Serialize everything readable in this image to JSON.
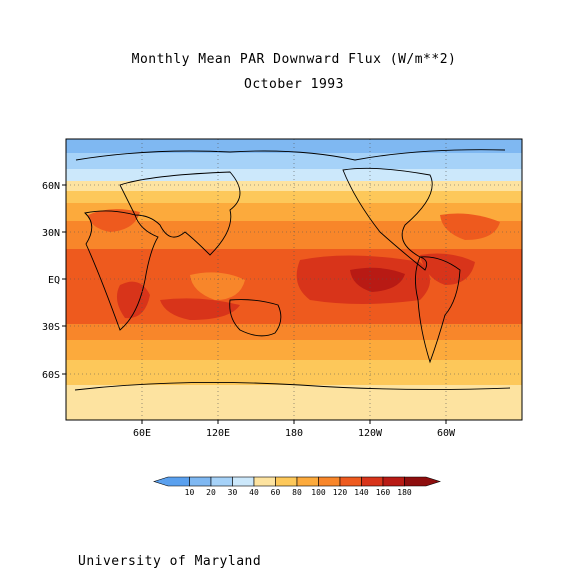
{
  "title": "Monthly Mean PAR Downward Flux (W/m**2)",
  "subtitle": "October 1993",
  "map": {
    "lat_labels": [
      "60N",
      "30N",
      "EQ",
      "30S",
      "60S"
    ],
    "lon_labels": [
      "60E",
      "120E",
      "180",
      "120W",
      "60W"
    ]
  },
  "colorbar": {
    "ticks": [
      "10",
      "20",
      "30",
      "40",
      "60",
      "80",
      "100",
      "120",
      "140",
      "160",
      "180"
    ],
    "colors": [
      "#5aa0ee",
      "#7fb8f2",
      "#a6d2f8",
      "#cce8fb",
      "#fde3a0",
      "#fdc85a",
      "#fcaa3c",
      "#f8862a",
      "#ee5a1e",
      "#d8341a",
      "#b81a14",
      "#8e0e0e"
    ]
  },
  "credit": "University of Maryland"
}
